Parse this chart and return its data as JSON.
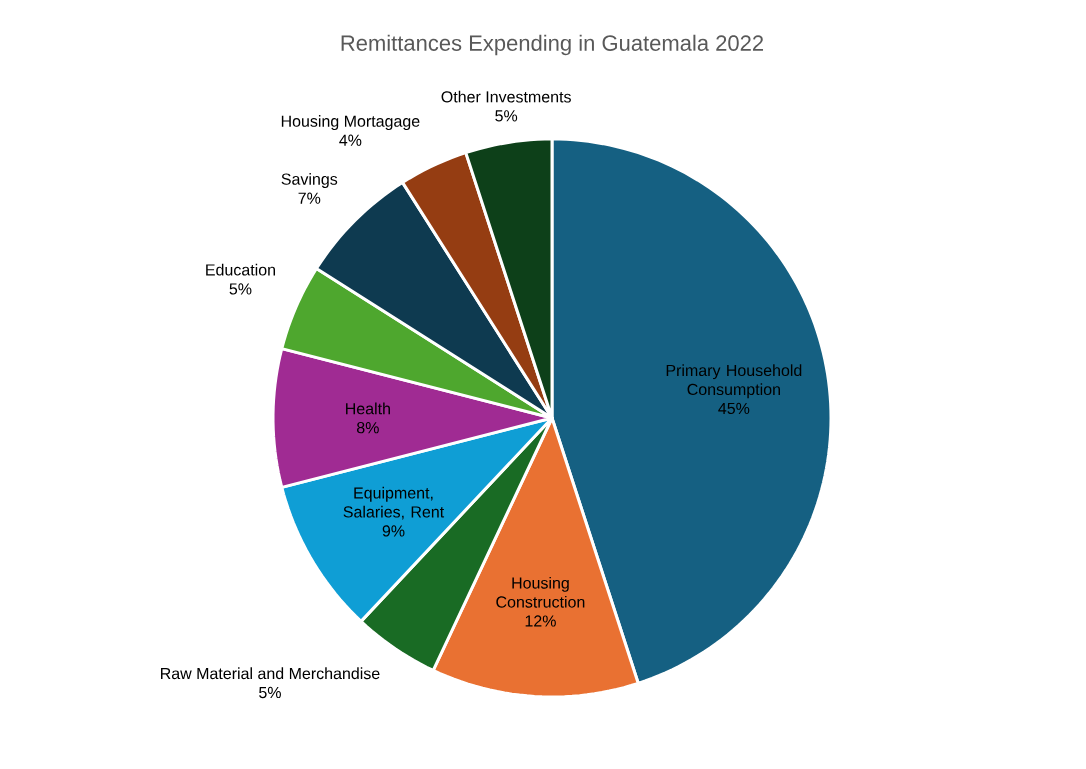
{
  "chart_data": {
    "type": "pie",
    "title": "Remittances Expending in Guatemala 2022",
    "categories": [
      "Primary Household Consumption",
      "Housing Construction",
      "Raw Material and Merchandise",
      "Equipment, Salaries, Rent",
      "Health",
      "Education",
      "Savings",
      "Housing Mortagage",
      "Other Investments"
    ],
    "values": [
      45,
      12,
      5,
      9,
      8,
      5,
      7,
      4,
      5
    ],
    "value_labels": [
      "45%",
      "12%",
      "5%",
      "9%",
      "8%",
      "5%",
      "7%",
      "4%",
      "5%"
    ],
    "colors": [
      "#156082",
      "#e97132",
      "#196b24",
      "#0f9ed5",
      "#a02b93",
      "#4ea72e",
      "#0e3a50",
      "#953d12",
      "#0d4019"
    ]
  }
}
